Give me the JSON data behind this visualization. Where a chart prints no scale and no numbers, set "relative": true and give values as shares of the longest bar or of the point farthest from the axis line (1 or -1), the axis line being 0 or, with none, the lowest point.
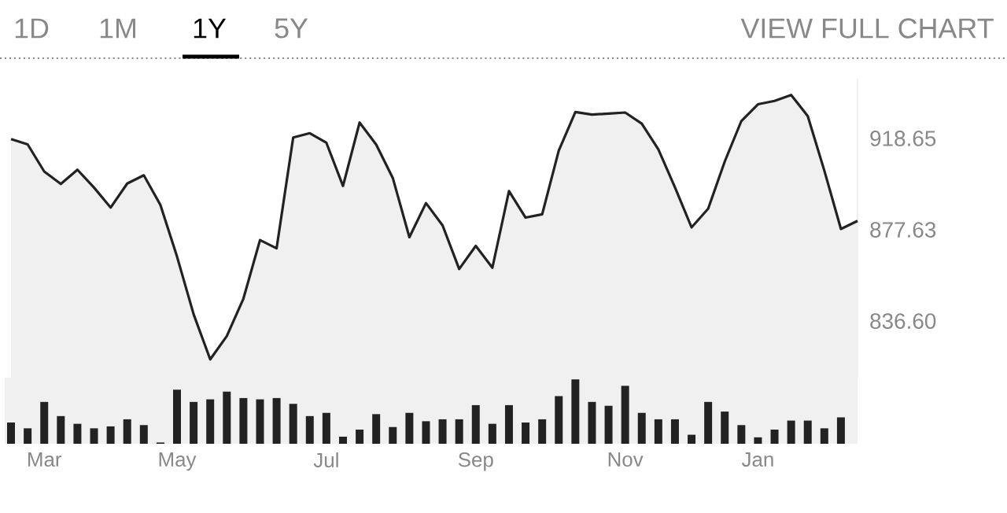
{
  "chart_data": [
    {
      "type": "area",
      "color": "#222222",
      "categories": [
        null,
        null,
        null,
        null,
        null,
        null,
        null,
        null,
        null,
        null,
        null,
        null,
        null,
        null,
        null,
        null,
        null,
        null,
        null,
        null,
        null,
        null,
        null,
        null,
        null,
        null,
        null,
        null,
        null,
        null,
        null,
        null,
        null,
        null,
        null,
        null,
        null,
        null,
        null,
        null,
        null,
        null,
        null,
        null,
        null,
        null,
        null,
        null,
        null,
        null,
        null,
        null
      ],
      "values": [
        918.4,
        916.0,
        903.8,
        898.2,
        904.6,
        896.6,
        887.6,
        898.4,
        902.1,
        888.8,
        865.6,
        839.7,
        819.4,
        829.9,
        846.7,
        873.0,
        869.3,
        919.1,
        921.0,
        916.7,
        897.3,
        925.8,
        915.9,
        900.9,
        874.3,
        889.6,
        879.6,
        860.0,
        870.4,
        860.6,
        895.0,
        883.1,
        884.6,
        913.2,
        930.5,
        929.4,
        929.8,
        930.3,
        925.3,
        913.7,
        896.7,
        878.7,
        887.1,
        908.3,
        926.5,
        934.0,
        935.5,
        938.2,
        928.7,
        904.2,
        878.0,
        881.6
      ],
      "ylim": [
        811.2,
        945.5
      ],
      "yticks": [
        {
          "value": 836.6,
          "label": "836.60"
        },
        {
          "value": 877.63,
          "label": "877.63"
        },
        {
          "value": 918.65,
          "label": "918.65"
        }
      ],
      "tick_labels": "y",
      "annotations": [
        "1D",
        "1M",
        "1Y",
        "5Y",
        "VIEW FULL CHART"
      ]
    },
    {
      "type": "bar",
      "color": "#222222",
      "relative": true,
      "categories": [
        null,
        null,
        "Mar",
        null,
        null,
        null,
        null,
        null,
        null,
        null,
        "May",
        null,
        null,
        null,
        null,
        null,
        null,
        null,
        null,
        "Jul",
        null,
        null,
        null,
        null,
        null,
        null,
        null,
        null,
        "Sep",
        null,
        null,
        null,
        null,
        null,
        null,
        null,
        null,
        "Nov",
        null,
        null,
        null,
        null,
        null,
        null,
        null,
        "Jan",
        null,
        null,
        null,
        null,
        null,
        null
      ],
      "values": [
        0.33,
        0.24,
        0.65,
        0.43,
        0.31,
        0.24,
        0.27,
        0.38,
        0.29,
        0.02,
        0.84,
        0.65,
        0.69,
        0.81,
        0.71,
        0.69,
        0.71,
        0.62,
        0.43,
        0.48,
        0.11,
        0.22,
        0.46,
        0.26,
        0.48,
        0.35,
        0.38,
        0.38,
        0.6,
        0.31,
        0.6,
        0.33,
        0.38,
        0.74,
        1,
        0.65,
        0.59,
        0.9,
        0.48,
        0.38,
        0.38,
        0.14,
        0.65,
        0.5,
        0.29,
        0.1,
        0.22,
        0.36,
        0.36,
        0.24,
        0.41,
        null
      ],
      "tick_labels": "x"
    }
  ]
}
